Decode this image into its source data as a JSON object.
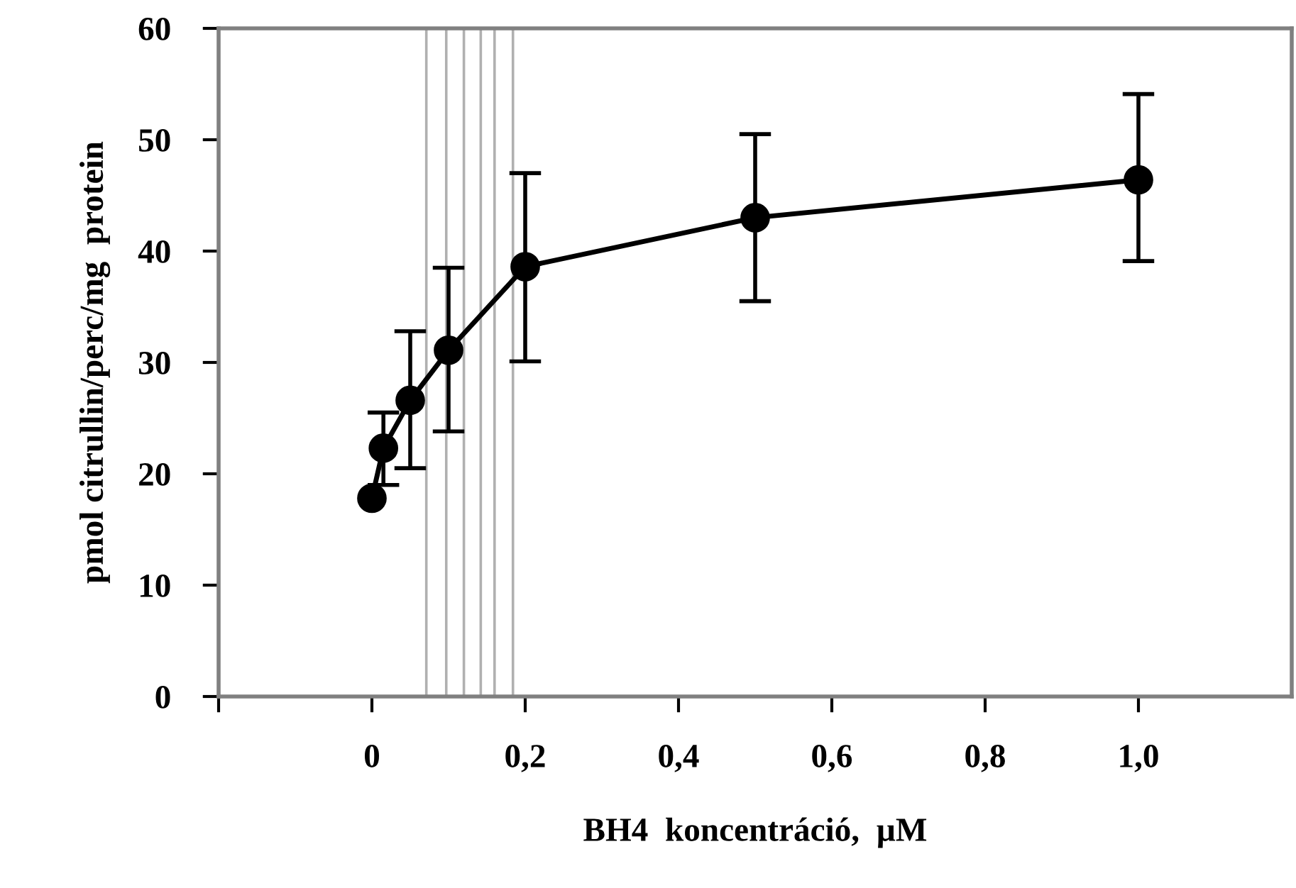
{
  "chart_data": {
    "type": "line",
    "xlabel": "BH4  koncentráció,  µM",
    "ylabel": "pmol citrullin/perc/mg  protein",
    "x": [
      0,
      0.015,
      0.05,
      0.1,
      0.2,
      0.5,
      1.0
    ],
    "series": [
      {
        "color": "#000000",
        "values": [
          17.8,
          22.3,
          26.6,
          31.1,
          38.6,
          43.0,
          46.4
        ],
        "errors": [
          null,
          [
            19.0,
            25.5
          ],
          [
            20.5,
            32.8
          ],
          [
            23.8,
            38.5
          ],
          [
            30.1,
            47.0
          ],
          [
            35.5,
            50.5
          ],
          [
            39.1,
            54.1
          ]
        ]
      }
    ],
    "marker": "circle",
    "line_style": "solid",
    "grid": false,
    "xlim": [
      -0.2,
      1.2
    ],
    "xticks": [
      {
        "value": -0.2,
        "label": null
      },
      {
        "value": 0,
        "label": "0"
      },
      {
        "value": 0.2,
        "label": "0,2"
      },
      {
        "value": 0.4,
        "label": "0,4"
      },
      {
        "value": 0.6,
        "label": "0,6"
      },
      {
        "value": 0.8,
        "label": "0,8"
      },
      {
        "value": 1.0,
        "label": "1,0"
      }
    ],
    "ylim": [
      0,
      60
    ],
    "yticks": [
      0,
      10,
      20,
      30,
      40,
      50,
      60
    ],
    "ref_lines": [
      {
        "axis": "x",
        "value": 0.071,
        "color": "#b0b0b0"
      },
      {
        "axis": "x",
        "value": 0.097,
        "color": "#b0b0b0"
      },
      {
        "axis": "x",
        "value": 0.12,
        "color": "#b0b0b0"
      },
      {
        "axis": "x",
        "value": 0.142,
        "color": "#b0b0b0"
      },
      {
        "axis": "x",
        "value": 0.16,
        "color": "#b0b0b0"
      },
      {
        "axis": "x",
        "value": 0.184,
        "color": "#b0b0b0"
      }
    ]
  }
}
